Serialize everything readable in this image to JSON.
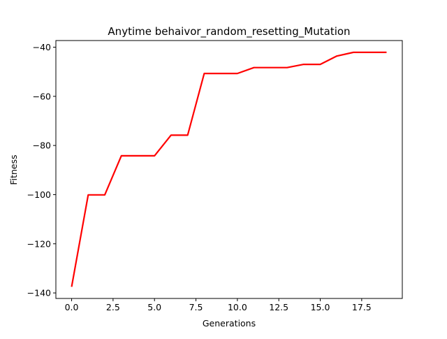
{
  "chart_data": {
    "type": "line",
    "title": "Anytime behaivor_random_resetting_Mutation",
    "xlabel": "Generations",
    "ylabel": "Fitness",
    "xlim": [
      -0.95,
      19.95
    ],
    "ylim": [
      -142.25,
      -37.3
    ],
    "xticks": [
      0.0,
      2.5,
      5.0,
      7.5,
      10.0,
      12.5,
      15.0,
      17.5
    ],
    "xtick_labels": [
      "0.0",
      "2.5",
      "5.0",
      "7.5",
      "10.0",
      "12.5",
      "15.0",
      "17.5"
    ],
    "yticks": [
      -140,
      -120,
      -100,
      -80,
      -60,
      -40
    ],
    "ytick_labels": [
      "−140",
      "−120",
      "−100",
      "−80",
      "−60",
      "−40"
    ],
    "grid": false,
    "series": [
      {
        "color": "#ff0000",
        "x": [
          0,
          1,
          2,
          3,
          4,
          5,
          6,
          7,
          8,
          9,
          10,
          11,
          12,
          13,
          14,
          15,
          16,
          17,
          18,
          19
        ],
        "y": [
          -137.5,
          -100.1,
          -100.1,
          -84.2,
          -84.2,
          -84.2,
          -75.8,
          -75.8,
          -50.7,
          -50.7,
          -50.7,
          -48.3,
          -48.3,
          -48.3,
          -47.0,
          -47.0,
          -43.6,
          -42.1,
          -42.1,
          -42.1
        ]
      }
    ]
  }
}
